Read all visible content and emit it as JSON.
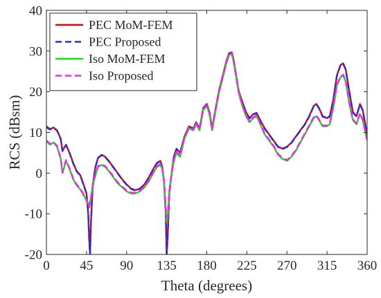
{
  "chart_data": {
    "type": "line",
    "xlabel": "Theta (degrees)",
    "ylabel": "RCS (dBsm)",
    "xlim": [
      0,
      360
    ],
    "ylim": [
      -20,
      40
    ],
    "x_ticks": [
      0,
      45,
      90,
      135,
      180,
      225,
      270,
      315,
      360
    ],
    "y_ticks": [
      -20,
      -10,
      0,
      10,
      20,
      30,
      40
    ],
    "grid": false,
    "legend_position": "top-left",
    "series": [
      {
        "name": "PEC MoM-FEM",
        "color": "#e8000b",
        "style": "solid",
        "x": [
          0,
          4,
          8,
          12,
          16,
          18,
          22,
          26,
          30,
          34,
          38,
          42,
          45,
          47,
          48,
          49,
          50,
          52,
          55,
          58,
          62,
          66,
          70,
          75,
          80,
          85,
          90,
          95,
          100,
          105,
          110,
          115,
          120,
          124,
          128,
          130,
          132,
          134,
          135,
          136,
          137,
          138,
          140,
          143,
          146,
          150,
          155,
          160,
          165,
          168,
          172,
          176,
          180,
          183,
          186,
          190,
          194,
          198,
          202,
          205,
          208,
          210,
          213,
          216,
          220,
          224,
          228,
          232,
          236,
          240,
          245,
          250,
          255,
          260,
          265,
          270,
          275,
          280,
          285,
          290,
          295,
          300,
          303,
          306,
          310,
          315,
          318,
          322,
          326,
          330,
          333,
          336,
          340,
          344,
          348,
          352,
          355,
          358,
          360
        ],
        "y": [
          11.5,
          10.8,
          11.2,
          10.5,
          8.5,
          5.5,
          7.0,
          5.0,
          2.5,
          0.5,
          -0.5,
          -3.0,
          -5.0,
          -10.0,
          -16.0,
          -20.0,
          -12.0,
          -3.0,
          1.5,
          3.8,
          4.5,
          4.0,
          3.0,
          1.5,
          0.0,
          -1.5,
          -2.8,
          -3.8,
          -4.2,
          -3.8,
          -2.8,
          -1.0,
          1.0,
          2.5,
          3.0,
          1.5,
          -2.0,
          -10.0,
          -20.0,
          -16.0,
          -10.0,
          -5.0,
          -1.0,
          4.0,
          6.0,
          5.0,
          9.0,
          11.5,
          11.0,
          12.5,
          11.0,
          16.0,
          17.0,
          15.0,
          11.0,
          16.0,
          20.5,
          24.0,
          27.5,
          29.5,
          29.7,
          28.0,
          24.0,
          20.0,
          17.5,
          15.0,
          13.5,
          14.5,
          14.8,
          13.0,
          11.0,
          9.5,
          8.0,
          6.5,
          6.0,
          6.5,
          7.5,
          9.0,
          10.5,
          12.0,
          14.0,
          16.5,
          17.0,
          16.0,
          14.0,
          13.5,
          14.0,
          18.0,
          24.0,
          26.5,
          27.0,
          25.5,
          20.0,
          15.0,
          14.0,
          17.0,
          15.5,
          12.0,
          9.0
        ]
      },
      {
        "name": "PEC Proposed",
        "color": "#1f2fe0",
        "style": "dashed",
        "x": [
          0,
          4,
          8,
          12,
          16,
          18,
          22,
          26,
          30,
          34,
          38,
          42,
          45,
          47,
          48,
          49,
          50,
          52,
          55,
          58,
          62,
          66,
          70,
          75,
          80,
          85,
          90,
          95,
          100,
          105,
          110,
          115,
          120,
          124,
          128,
          130,
          132,
          134,
          135,
          136,
          137,
          138,
          140,
          143,
          146,
          150,
          155,
          160,
          165,
          168,
          172,
          176,
          180,
          183,
          186,
          190,
          194,
          198,
          202,
          205,
          208,
          210,
          213,
          216,
          220,
          224,
          228,
          232,
          236,
          240,
          245,
          250,
          255,
          260,
          265,
          270,
          275,
          280,
          285,
          290,
          295,
          300,
          303,
          306,
          310,
          315,
          318,
          322,
          326,
          330,
          333,
          336,
          340,
          344,
          348,
          352,
          355,
          358,
          360
        ],
        "y": [
          11.3,
          10.7,
          11.1,
          10.4,
          8.4,
          5.4,
          6.9,
          4.9,
          2.4,
          0.4,
          -0.6,
          -3.1,
          -5.1,
          -10.2,
          -16.5,
          -20.0,
          -12.2,
          -3.1,
          1.4,
          3.7,
          4.4,
          3.9,
          2.9,
          1.4,
          -0.1,
          -1.6,
          -2.9,
          -3.9,
          -4.3,
          -3.9,
          -2.9,
          -1.1,
          0.9,
          2.4,
          2.9,
          1.4,
          -2.2,
          -10.5,
          -20.0,
          -16.5,
          -10.2,
          -5.1,
          -1.1,
          3.9,
          5.9,
          4.9,
          8.9,
          11.4,
          10.9,
          12.4,
          10.9,
          15.9,
          16.9,
          14.9,
          10.9,
          15.9,
          20.4,
          23.9,
          27.4,
          29.4,
          29.6,
          27.9,
          23.9,
          19.9,
          17.4,
          14.9,
          13.4,
          14.4,
          14.7,
          12.9,
          10.9,
          9.4,
          7.9,
          6.4,
          5.9,
          6.4,
          7.4,
          8.9,
          10.4,
          11.9,
          13.9,
          16.4,
          16.9,
          15.9,
          13.9,
          13.4,
          13.9,
          17.9,
          23.9,
          26.4,
          26.9,
          25.4,
          19.9,
          14.9,
          13.9,
          16.9,
          15.4,
          11.9,
          8.9
        ]
      },
      {
        "name": "Iso MoM-FEM",
        "color": "#12e012",
        "style": "solid",
        "x": [
          0,
          4,
          8,
          12,
          16,
          18,
          22,
          26,
          30,
          34,
          38,
          42,
          45,
          47,
          48,
          50,
          52,
          55,
          58,
          62,
          66,
          70,
          75,
          80,
          85,
          90,
          95,
          100,
          105,
          110,
          115,
          120,
          124,
          128,
          130,
          132,
          134,
          135,
          136,
          137,
          138,
          140,
          143,
          146,
          150,
          155,
          160,
          165,
          168,
          172,
          176,
          180,
          183,
          186,
          190,
          194,
          198,
          202,
          205,
          208,
          210,
          213,
          216,
          220,
          224,
          228,
          232,
          236,
          240,
          245,
          250,
          255,
          260,
          265,
          270,
          275,
          280,
          285,
          290,
          295,
          300,
          303,
          306,
          310,
          315,
          318,
          322,
          326,
          330,
          333,
          336,
          340,
          344,
          348,
          352,
          355,
          358,
          360
        ],
        "y": [
          7.8,
          7.0,
          7.5,
          6.5,
          3.5,
          0.0,
          3.0,
          1.0,
          -1.5,
          -3.0,
          -4.0,
          -5.5,
          -6.5,
          -7.5,
          -8.0,
          -6.0,
          -3.0,
          -0.5,
          1.5,
          2.0,
          1.5,
          0.5,
          -1.0,
          -2.5,
          -3.5,
          -4.5,
          -5.0,
          -5.0,
          -4.5,
          -3.5,
          -2.0,
          0.0,
          1.5,
          2.0,
          1.0,
          -2.0,
          -9.0,
          -12.0,
          -11.0,
          -8.0,
          -4.5,
          -1.0,
          3.0,
          5.0,
          4.0,
          8.5,
          11.0,
          10.5,
          12.0,
          10.5,
          15.5,
          16.5,
          14.5,
          10.5,
          15.5,
          20.0,
          23.5,
          27.0,
          29.0,
          29.3,
          27.5,
          23.5,
          19.5,
          16.5,
          14.0,
          12.5,
          13.5,
          14.0,
          12.0,
          9.5,
          8.0,
          6.5,
          4.5,
          3.5,
          3.0,
          4.0,
          5.5,
          7.5,
          9.5,
          11.5,
          13.5,
          14.0,
          13.0,
          11.5,
          11.5,
          12.0,
          16.0,
          21.5,
          23.5,
          24.0,
          22.5,
          17.0,
          13.0,
          12.0,
          14.5,
          13.0,
          10.0,
          8.0
        ]
      },
      {
        "name": "Iso Proposed",
        "color": "#ff1dff",
        "style": "dashed",
        "x": [
          0,
          4,
          8,
          12,
          16,
          18,
          22,
          26,
          30,
          34,
          38,
          42,
          45,
          47,
          48,
          50,
          52,
          55,
          58,
          62,
          66,
          70,
          75,
          80,
          85,
          90,
          95,
          100,
          105,
          110,
          115,
          120,
          124,
          128,
          130,
          132,
          134,
          135,
          136,
          137,
          138,
          140,
          143,
          146,
          150,
          155,
          160,
          165,
          168,
          172,
          176,
          180,
          183,
          186,
          190,
          194,
          198,
          202,
          205,
          208,
          210,
          213,
          216,
          220,
          224,
          228,
          232,
          236,
          240,
          245,
          250,
          255,
          260,
          265,
          270,
          275,
          280,
          285,
          290,
          295,
          300,
          303,
          306,
          310,
          315,
          318,
          322,
          326,
          330,
          333,
          336,
          340,
          344,
          348,
          352,
          355,
          358,
          360
        ],
        "y": [
          8.0,
          7.2,
          7.6,
          6.7,
          3.7,
          0.2,
          3.2,
          1.2,
          -1.3,
          -2.8,
          -3.8,
          -5.3,
          -6.8,
          -8.0,
          -8.5,
          -6.2,
          -3.2,
          -0.3,
          1.7,
          2.2,
          1.7,
          0.7,
          -0.8,
          -2.3,
          -3.3,
          -4.3,
          -4.8,
          -4.8,
          -4.3,
          -3.3,
          -1.8,
          0.2,
          1.7,
          2.2,
          1.2,
          -1.8,
          -8.5,
          -11.0,
          -10.5,
          -7.8,
          -4.3,
          -0.8,
          3.2,
          5.2,
          4.2,
          8.7,
          11.2,
          10.7,
          12.2,
          10.7,
          15.7,
          16.7,
          14.7,
          10.7,
          15.7,
          20.2,
          23.7,
          27.2,
          29.2,
          29.5,
          27.7,
          23.7,
          19.7,
          16.7,
          14.2,
          12.7,
          13.7,
          14.2,
          12.2,
          9.7,
          8.2,
          6.7,
          4.7,
          3.7,
          3.2,
          4.2,
          5.7,
          7.7,
          9.7,
          11.7,
          13.7,
          14.2,
          13.2,
          11.7,
          11.7,
          12.2,
          16.2,
          21.7,
          23.7,
          24.2,
          22.7,
          17.2,
          13.2,
          12.2,
          14.7,
          13.2,
          10.2,
          8.2
        ]
      }
    ]
  }
}
